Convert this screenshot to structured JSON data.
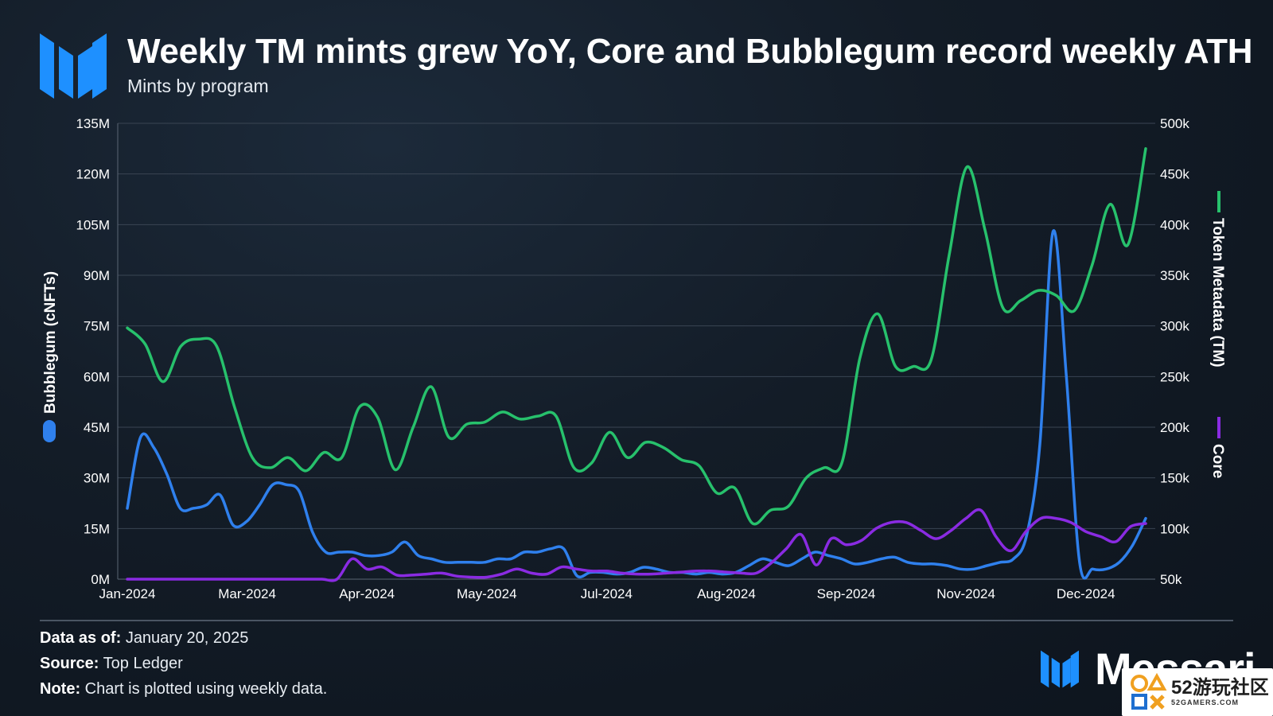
{
  "header": {
    "title": "Weekly TM mints grew YoY, Core and Bubblegum record weekly ATH",
    "subtitle": "Mints by program"
  },
  "footer": {
    "data_as_of_label": "Data as of:",
    "data_as_of_value": "January 20, 2025",
    "source_label": "Source:",
    "source_value": "Top Ledger",
    "note_label": "Note:",
    "note_value": "Chart is plotted using weekly data."
  },
  "brand": {
    "name": "Messari"
  },
  "watermark": {
    "big": "52游玩社区",
    "small": "52GAMERS.COM"
  },
  "colors": {
    "bubblegum": "#2f80ed",
    "token_metadata": "#27c16c",
    "core": "#8a2be2",
    "grid": "#3a4553",
    "text": "#ffffff",
    "logo": "#1e90ff"
  },
  "chart_data": {
    "type": "line",
    "xlabel": "",
    "x_tick_labels": [
      "Jan-2024",
      "Mar-2024",
      "Apr-2024",
      "May-2024",
      "Jul-2024",
      "Aug-2024",
      "Sep-2024",
      "Nov-2024",
      "Dec-2024"
    ],
    "x_tick_weeks": [
      0,
      10,
      20,
      30,
      40,
      50,
      60,
      70,
      80
    ],
    "y_left": {
      "label": "Bubblegum (cNFTs)",
      "ylim": [
        0,
        135
      ],
      "ticks": [
        0,
        15,
        30,
        45,
        60,
        75,
        90,
        105,
        120,
        135
      ],
      "tick_labels": [
        "0M",
        "15M",
        "30M",
        "45M",
        "60M",
        "75M",
        "90M",
        "105M",
        "120M",
        "135M"
      ]
    },
    "y_right": {
      "labels": [
        "Token Metadata (TM)",
        "Core"
      ],
      "ylim": [
        50,
        500
      ],
      "ticks": [
        50,
        100,
        150,
        200,
        250,
        300,
        350,
        400,
        450,
        500
      ],
      "tick_labels": [
        "50k",
        "100k",
        "150k",
        "200k",
        "250k",
        "300k",
        "350k",
        "400k",
        "450k",
        "500k"
      ]
    },
    "grid": true,
    "series": [
      {
        "name": "Bubblegum (cNFTs)",
        "axis": "left",
        "color": "#2f80ed",
        "unit": "M",
        "values": [
          21,
          42,
          39,
          31,
          21,
          21,
          22,
          25,
          16,
          17,
          22,
          28,
          28,
          26,
          14,
          8,
          8,
          8,
          7,
          7,
          8,
          11,
          7,
          6,
          5,
          5,
          5,
          5,
          6,
          6,
          8,
          8,
          9,
          9,
          1,
          2,
          2,
          1.5,
          2,
          3.5,
          3,
          2,
          2,
          1.5,
          2,
          1.5,
          2,
          4,
          6,
          5,
          4,
          6,
          8,
          7,
          6,
          4.5,
          5,
          6,
          6.5,
          5,
          4.5,
          4.5,
          4,
          3,
          3,
          4,
          5,
          6,
          13,
          40,
          103,
          60,
          5,
          3,
          3,
          5,
          10,
          18
        ]
      },
      {
        "name": "Token Metadata (TM)",
        "axis": "right",
        "color": "#27c16c",
        "unit": "k",
        "values": [
          298,
          282,
          245,
          280,
          287,
          280,
          220,
          170,
          160,
          170,
          157,
          175,
          170,
          220,
          210,
          158,
          200,
          240,
          190,
          203,
          205,
          215,
          208,
          211,
          211,
          160,
          165,
          195,
          170,
          185,
          180,
          168,
          162,
          135,
          140,
          105,
          118,
          122,
          150,
          160,
          165,
          268,
          312,
          260,
          260,
          267,
          370,
          457,
          395,
          318,
          325,
          335,
          330,
          315,
          360,
          420,
          380,
          475
        ]
      },
      {
        "name": "Core",
        "axis": "right",
        "color": "#8a2be2",
        "unit": "k",
        "values": [
          50,
          50,
          50,
          50,
          50,
          50,
          50,
          50,
          50,
          50,
          50,
          50,
          50,
          50,
          50,
          70,
          60,
          62,
          54,
          54,
          55,
          56,
          53,
          52,
          52,
          55,
          60,
          56,
          55,
          62,
          60,
          58,
          58,
          56,
          55,
          55,
          56,
          57,
          58,
          58,
          57,
          56,
          56,
          66,
          80,
          94,
          64,
          90,
          84,
          88,
          100,
          106,
          106,
          98,
          90,
          98,
          110,
          118,
          92,
          78,
          97,
          110,
          110,
          106,
          97,
          92,
          87,
          102,
          105
        ]
      }
    ]
  }
}
